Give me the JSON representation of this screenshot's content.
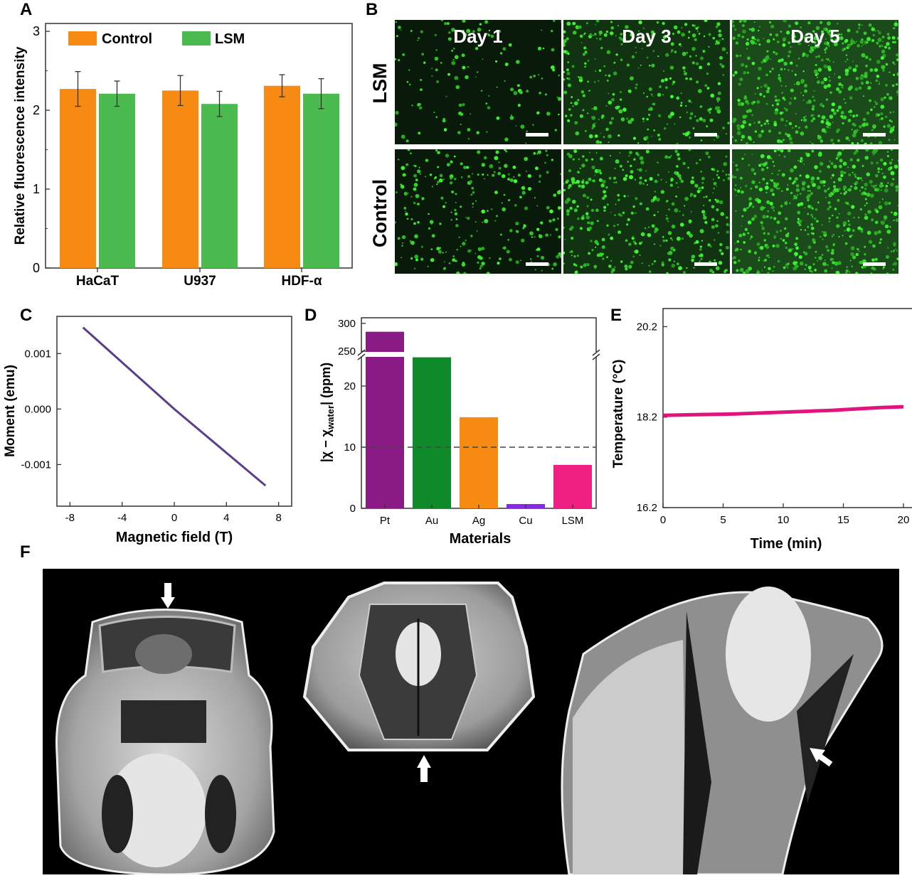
{
  "panel_labels": {
    "a": "A",
    "b": "B",
    "c": "C",
    "d": "D",
    "e": "E",
    "f": "F"
  },
  "chart_data": [
    {
      "id": "A",
      "type": "bar",
      "categories": [
        "HaCaT",
        "U937",
        "HDF-α"
      ],
      "series": [
        {
          "name": "Control",
          "color": "#f78a12",
          "values": [
            2.27,
            2.25,
            2.31
          ],
          "errors": [
            0.22,
            0.19,
            0.14
          ]
        },
        {
          "name": "LSM",
          "color": "#4cbb4f",
          "values": [
            2.21,
            2.08,
            2.21
          ],
          "errors": [
            0.16,
            0.16,
            0.19
          ]
        }
      ],
      "ylabel": "Relative fluorescence intensity",
      "xlabel": "",
      "ylim": [
        0,
        3.1
      ],
      "yticks": [
        "0",
        "1",
        "2",
        "3"
      ],
      "legend": "top"
    },
    {
      "id": "C",
      "type": "line",
      "x": [
        -7,
        0,
        7
      ],
      "y": [
        0.00147,
        0.0,
        -0.00138
      ],
      "color": "#5a3e8c",
      "xlabel": "Magnetic field (T)",
      "ylabel": "Moment (emu)",
      "xlim": [
        -9,
        9
      ],
      "ylim": [
        -0.00175,
        0.00167
      ],
      "xticks": [
        "-8",
        "-4",
        "0",
        "4",
        "8"
      ],
      "yticks": [
        "0.001",
        "0.000",
        "-0.001"
      ]
    },
    {
      "id": "D",
      "type": "bar",
      "categories": [
        "Pt",
        "Au",
        "Ag",
        "Cu",
        "LSM"
      ],
      "values": [
        285,
        24.7,
        14.9,
        0.7,
        7.1
      ],
      "colors": [
        "#8a1a86",
        "#0e8a2a",
        "#f78a12",
        "#8a28e8",
        "#ef1f82"
      ],
      "xlabel": "Materials",
      "ylabel_parts": [
        "|χ − χ",
        "water",
        "| (ppm)"
      ],
      "reference_line": 10,
      "axis_break": [
        25,
        245
      ],
      "yticks_lower": [
        "0",
        "10",
        "20"
      ],
      "yticks_upper": [
        "250",
        "300"
      ]
    },
    {
      "id": "E",
      "type": "line",
      "color": "#e0147c",
      "x": [
        0,
        2,
        4,
        6,
        8,
        10,
        12,
        14,
        16,
        18,
        20
      ],
      "y": [
        18.24,
        18.25,
        18.26,
        18.27,
        18.29,
        18.31,
        18.33,
        18.35,
        18.38,
        18.41,
        18.43
      ],
      "xlabel": "Time (min)",
      "ylabel": "Temperature (°C)",
      "xlim": [
        0,
        20
      ],
      "ylim": [
        16.2,
        20.6
      ],
      "xticks": [
        "0",
        "5",
        "10",
        "15",
        "20"
      ],
      "yticks": [
        "16.2",
        "18.2",
        "20.2"
      ]
    }
  ],
  "panel_b": {
    "columns": [
      "Day 1",
      "Day 3",
      "Day 5"
    ],
    "rows": [
      "LSM",
      "Control"
    ]
  }
}
